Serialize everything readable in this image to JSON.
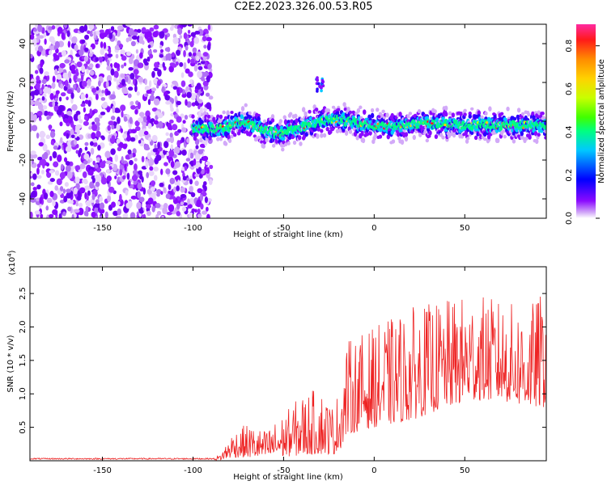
{
  "figure": {
    "title": "C2E2.2023.326.00.53.R05"
  },
  "chart_data": [
    {
      "type": "heatmap",
      "xlabel": "Height of straight line (km)",
      "ylabel": "Frequency (Hz)",
      "xlim": [
        -190,
        95
      ],
      "ylim": [
        -50,
        50
      ],
      "xticks": [
        -150,
        -100,
        -50,
        0,
        50
      ],
      "yticks": [
        -40,
        -20,
        0,
        20,
        40
      ],
      "colorbar": {
        "label": "Normalized spectral amplitude",
        "range": [
          0,
          0.9
        ],
        "ticks": [
          0.0,
          0.2,
          0.4,
          0.6,
          0.8
        ],
        "colormap": [
          "#ffffff",
          "#d2a9f8",
          "#8a0aff",
          "#0000ff",
          "#00c8ff",
          "#00ff80",
          "#40ff00",
          "#c8ff00",
          "#ffd200",
          "#ff8c00",
          "#ff1a1a",
          "#ff2aa0"
        ]
      },
      "noise_region": {
        "x": [
          -190,
          -90
        ],
        "y": [
          -50,
          50
        ]
      },
      "signal_band": {
        "x": [
          -100,
          95
        ],
        "center": [
          {
            "x": -100,
            "y": -4
          },
          {
            "x": -85,
            "y": -4
          },
          {
            "x": -72,
            "y": 0
          },
          {
            "x": -60,
            "y": -5
          },
          {
            "x": -50,
            "y": -6
          },
          {
            "x": -40,
            "y": -3
          },
          {
            "x": -30,
            "y": 0
          },
          {
            "x": -20,
            "y": 1
          },
          {
            "x": -10,
            "y": -1
          },
          {
            "x": 0,
            "y": -2
          },
          {
            "x": 10,
            "y": -3
          },
          {
            "x": 25,
            "y": -1
          },
          {
            "x": 50,
            "y": -2
          },
          {
            "x": 75,
            "y": -2
          },
          {
            "x": 95,
            "y": -2
          }
        ],
        "half_width_hz": 4
      },
      "feature": {
        "x": -30,
        "y": 19
      }
    },
    {
      "type": "line",
      "xlabel": "Height of straight line (km)",
      "ylabel": "SNR (10 * v/v)",
      "y_scale_label": "(x10",
      "y_scale_exponent": "4",
      "y_scale_close": ")",
      "xlim": [
        -190,
        95
      ],
      "ylim": [
        0,
        2.9
      ],
      "xticks": [
        -150,
        -100,
        -50,
        0,
        50
      ],
      "yticks": [
        0.5,
        1.0,
        1.5,
        2.0,
        2.5
      ],
      "color": "#ee2222",
      "envelope": [
        {
          "x": -190,
          "lo": 0.01,
          "hi": 0.04
        },
        {
          "x": -90,
          "lo": 0.01,
          "hi": 0.04
        },
        {
          "x": -85,
          "lo": 0.01,
          "hi": 0.1
        },
        {
          "x": -78,
          "lo": 0.05,
          "hi": 0.45
        },
        {
          "x": -70,
          "lo": 0.05,
          "hi": 0.55
        },
        {
          "x": -60,
          "lo": 0.05,
          "hi": 0.45
        },
        {
          "x": -50,
          "lo": 0.06,
          "hi": 0.7
        },
        {
          "x": -40,
          "lo": 0.08,
          "hi": 1.0
        },
        {
          "x": -30,
          "lo": 0.1,
          "hi": 1.1
        },
        {
          "x": -22,
          "lo": 0.1,
          "hi": 0.8
        },
        {
          "x": -18,
          "lo": 0.2,
          "hi": 1.3
        },
        {
          "x": -15,
          "lo": 0.4,
          "hi": 1.8
        },
        {
          "x": 0,
          "lo": 0.5,
          "hi": 2.0
        },
        {
          "x": 20,
          "lo": 0.6,
          "hi": 2.3
        },
        {
          "x": 40,
          "lo": 0.8,
          "hi": 2.4
        },
        {
          "x": 55,
          "lo": 0.9,
          "hi": 2.5
        },
        {
          "x": 70,
          "lo": 0.9,
          "hi": 2.4
        },
        {
          "x": 85,
          "lo": 0.8,
          "hi": 2.3
        },
        {
          "x": 95,
          "lo": 0.8,
          "hi": 2.6
        }
      ]
    }
  ]
}
